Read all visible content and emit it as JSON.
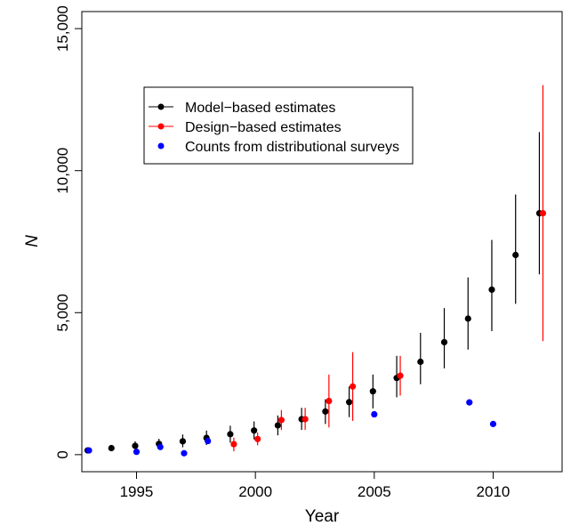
{
  "chart_data": {
    "type": "scatter",
    "xlabel": "Year",
    "ylabel": "N",
    "xlim": [
      1992.7,
      2012.9
    ],
    "ylim": [
      -600,
      15600
    ],
    "x_ticks": [
      1995,
      2000,
      2005,
      2010
    ],
    "x_tick_labels": [
      "1995",
      "2000",
      "2005",
      "2010"
    ],
    "y_ticks": [
      0,
      5000,
      10000,
      15000
    ],
    "y_tick_labels": [
      "0",
      "5,000",
      "10,000",
      "15,000"
    ],
    "legend": {
      "placement": "top-left inside",
      "entries": [
        {
          "label": "Model−based estimates",
          "color": "#000000",
          "has_line": true
        },
        {
          "label": "Design−based estimates",
          "color": "#ff0000",
          "has_line": true
        },
        {
          "label": "Counts from distributional surveys",
          "color": "#0000ff",
          "has_line": false
        }
      ]
    },
    "series": [
      {
        "name": "Model−based estimates",
        "color": "#000000",
        "points": [
          {
            "x": 1993,
            "y": 150,
            "lo": 150,
            "hi": 150
          },
          {
            "x": 1994,
            "y": 230,
            "lo": 230,
            "hi": 230
          },
          {
            "x": 1995,
            "y": 310,
            "lo": 180,
            "hi": 470
          },
          {
            "x": 1996,
            "y": 380,
            "lo": 210,
            "hi": 560
          },
          {
            "x": 1997,
            "y": 470,
            "lo": 260,
            "hi": 710
          },
          {
            "x": 1998,
            "y": 590,
            "lo": 340,
            "hi": 850
          },
          {
            "x": 1999,
            "y": 720,
            "lo": 420,
            "hi": 1020
          },
          {
            "x": 2000,
            "y": 850,
            "lo": 540,
            "hi": 1170
          },
          {
            "x": 2001,
            "y": 1030,
            "lo": 680,
            "hi": 1380
          },
          {
            "x": 2002,
            "y": 1250,
            "lo": 870,
            "hi": 1650
          },
          {
            "x": 2003,
            "y": 1520,
            "lo": 1080,
            "hi": 1950
          },
          {
            "x": 2004,
            "y": 1850,
            "lo": 1320,
            "hi": 2400
          },
          {
            "x": 2005,
            "y": 2230,
            "lo": 1630,
            "hi": 2820
          },
          {
            "x": 2006,
            "y": 2700,
            "lo": 2020,
            "hi": 3480
          },
          {
            "x": 2007,
            "y": 3270,
            "lo": 2480,
            "hi": 4290
          },
          {
            "x": 2008,
            "y": 3960,
            "lo": 3040,
            "hi": 5160
          },
          {
            "x": 2009,
            "y": 4790,
            "lo": 3700,
            "hi": 6240
          },
          {
            "x": 2010,
            "y": 5810,
            "lo": 4350,
            "hi": 7560
          },
          {
            "x": 2011,
            "y": 7030,
            "lo": 5310,
            "hi": 9160
          },
          {
            "x": 2012,
            "y": 8500,
            "lo": 6350,
            "hi": 11360
          }
        ]
      },
      {
        "name": "Design−based estimates",
        "color": "#ff0000",
        "points": [
          {
            "x": 1999,
            "y": 370,
            "lo": 120,
            "hi": 600
          },
          {
            "x": 2000,
            "y": 550,
            "lo": 330,
            "hi": 780
          },
          {
            "x": 2001,
            "y": 1220,
            "lo": 870,
            "hi": 1570
          },
          {
            "x": 2002,
            "y": 1250,
            "lo": 870,
            "hi": 1650
          },
          {
            "x": 2003,
            "y": 1890,
            "lo": 960,
            "hi": 2820
          },
          {
            "x": 2004,
            "y": 2400,
            "lo": 1190,
            "hi": 3610
          },
          {
            "x": 2006,
            "y": 2780,
            "lo": 2080,
            "hi": 3480
          },
          {
            "x": 2012,
            "y": 8500,
            "lo": 4000,
            "hi": 13010
          }
        ]
      },
      {
        "name": "Counts from distributional surveys",
        "color": "#0000ff",
        "points": [
          {
            "x": 1993,
            "y": 150
          },
          {
            "x": 1995,
            "y": 100
          },
          {
            "x": 1996,
            "y": 270
          },
          {
            "x": 1997,
            "y": 50
          },
          {
            "x": 1998,
            "y": 480
          },
          {
            "x": 2005,
            "y": 1420
          },
          {
            "x": 2009,
            "y": 1840
          },
          {
            "x": 2010,
            "y": 1080
          }
        ]
      }
    ]
  }
}
